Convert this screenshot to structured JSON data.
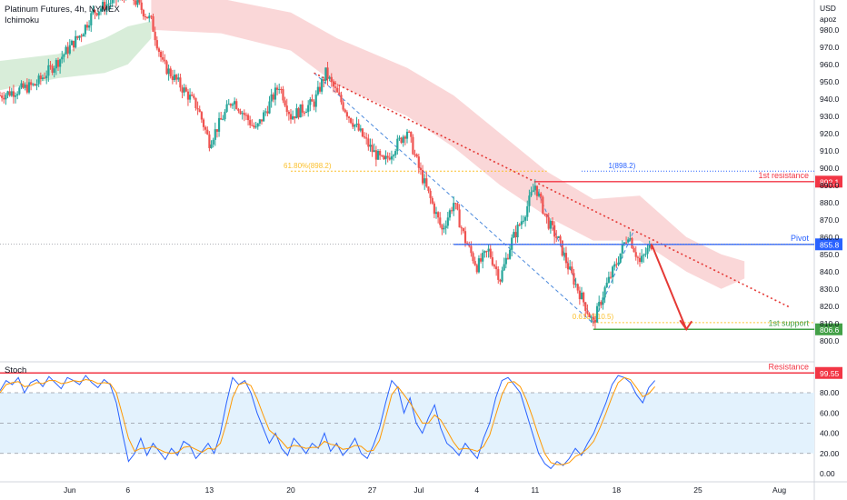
{
  "header": {
    "title": "Platinum Futures, 4h, NYMEX",
    "indicator": "Ichimoku",
    "currency": "USD",
    "scale_mode": "apoz"
  },
  "colors": {
    "up": "#26a69a",
    "down": "#ef5350",
    "resistance": "#f23645",
    "pivot": "#2962ff",
    "support": "#43a047",
    "fib": "#fbc02d",
    "cloud_bear": "#f8c9cb",
    "cloud_bull": "#c8e6c9",
    "stoch_k": "#2962ff",
    "stoch_d": "#ff9800",
    "stoch_band": "#e3f2fd"
  },
  "levels": {
    "first_resistance": {
      "label": "1st resistance",
      "value_label": "892.1",
      "value": 892.1
    },
    "pivot": {
      "label": "Pivot",
      "value_label": "855.8",
      "value": 855.8
    },
    "first_support": {
      "label": "1st support",
      "value_label": "806.6",
      "value": 806.6
    },
    "fib_618_left": {
      "label": "61.80%(898.2)",
      "value": 898.2
    },
    "fib_1_right": {
      "label": "1(898.2)",
      "value": 898.2
    },
    "fib_0618_bottom": {
      "label": "0.618(810.5)",
      "value": 810.5
    },
    "stoch_resistance": {
      "label": "Resistance",
      "value_label": "99.55",
      "value": 99.55
    }
  },
  "chart_data": [
    {
      "type": "candlestick",
      "title": "Platinum Futures, 4h, NYMEX",
      "ylim": [
        792,
        1000
      ],
      "y_ticks": [
        "800.0",
        "810.0",
        "820.0",
        "830.0",
        "840.0",
        "850.0",
        "860.0",
        "870.0",
        "880.0",
        "890.0",
        "900.0",
        "910.0",
        "920.0",
        "930.0",
        "940.0",
        "950.0",
        "960.0",
        "970.0",
        "980.0"
      ],
      "x_ticks": [
        "Jun",
        "6",
        "13",
        "20",
        "27",
        "Jul",
        "4",
        "11",
        "18",
        "25",
        "Aug"
      ],
      "x_tick_days": [
        1,
        6,
        13,
        20,
        27,
        31,
        36,
        41,
        48,
        55,
        62
      ],
      "x_range_days": [
        -5,
        65
      ],
      "price_path": [
        {
          "day": -5,
          "price": 942
        },
        {
          "day": -2,
          "price": 948
        },
        {
          "day": 0,
          "price": 962
        },
        {
          "day": 2,
          "price": 978
        },
        {
          "day": 3,
          "price": 990
        },
        {
          "day": 6,
          "price": 1002
        },
        {
          "day": 8,
          "price": 985
        },
        {
          "day": 9,
          "price": 960
        },
        {
          "day": 10,
          "price": 952
        },
        {
          "day": 12,
          "price": 935
        },
        {
          "day": 13,
          "price": 915
        },
        {
          "day": 15,
          "price": 940
        },
        {
          "day": 17,
          "price": 922
        },
        {
          "day": 19,
          "price": 948
        },
        {
          "day": 20,
          "price": 930
        },
        {
          "day": 22,
          "price": 938
        },
        {
          "day": 23,
          "price": 955
        },
        {
          "day": 25,
          "price": 930
        },
        {
          "day": 27,
          "price": 910
        },
        {
          "day": 28,
          "price": 903
        },
        {
          "day": 30,
          "price": 922
        },
        {
          "day": 31,
          "price": 900
        },
        {
          "day": 32,
          "price": 882
        },
        {
          "day": 33,
          "price": 864
        },
        {
          "day": 34,
          "price": 880
        },
        {
          "day": 35,
          "price": 858
        },
        {
          "day": 36,
          "price": 843
        },
        {
          "day": 37,
          "price": 852
        },
        {
          "day": 38,
          "price": 836
        },
        {
          "day": 39,
          "price": 858
        },
        {
          "day": 40,
          "price": 872
        },
        {
          "day": 41,
          "price": 890
        },
        {
          "day": 42,
          "price": 870
        },
        {
          "day": 43,
          "price": 858
        },
        {
          "day": 44,
          "price": 840
        },
        {
          "day": 45,
          "price": 825
        },
        {
          "day": 46,
          "price": 810
        },
        {
          "day": 47,
          "price": 830
        },
        {
          "day": 48,
          "price": 845
        },
        {
          "day": 49,
          "price": 862
        },
        {
          "day": 50,
          "price": 845
        },
        {
          "day": 51,
          "price": 856
        }
      ],
      "projection": {
        "from": {
          "day": 51,
          "price": 856
        },
        "to": {
          "day": 54,
          "price": 806.6
        }
      },
      "trendline": {
        "from": {
          "day": 22,
          "price": 955
        },
        "to": {
          "day": 63,
          "price": 819
        }
      },
      "cloud_bear": [
        {
          "day": 8,
          "top": 1002,
          "bottom": 980
        },
        {
          "day": 14,
          "top": 998,
          "bottom": 978
        },
        {
          "day": 20,
          "top": 990,
          "bottom": 968
        },
        {
          "day": 24,
          "top": 975,
          "bottom": 948
        },
        {
          "day": 30,
          "top": 958,
          "bottom": 930
        },
        {
          "day": 34,
          "top": 942,
          "bottom": 912
        },
        {
          "day": 38,
          "top": 920,
          "bottom": 890
        },
        {
          "day": 42,
          "top": 898,
          "bottom": 872
        },
        {
          "day": 46,
          "top": 882,
          "bottom": 858
        },
        {
          "day": 50,
          "top": 884,
          "bottom": 858
        },
        {
          "day": 54,
          "top": 860,
          "bottom": 840
        },
        {
          "day": 57,
          "top": 850,
          "bottom": 830
        },
        {
          "day": 59,
          "top": 846,
          "bottom": 836
        }
      ],
      "cloud_bull": [
        {
          "day": -5,
          "top": 962,
          "bottom": 945
        },
        {
          "day": 0,
          "top": 966,
          "bottom": 952
        },
        {
          "day": 4,
          "top": 975,
          "bottom": 955
        },
        {
          "day": 6,
          "top": 982,
          "bottom": 960
        },
        {
          "day": 8,
          "top": 985,
          "bottom": 975
        }
      ]
    },
    {
      "type": "line",
      "title": "Stoch",
      "ylim": [
        -8,
        108
      ],
      "y_ticks": [
        "0.00",
        "20.00",
        "40.00",
        "60.00",
        "80.00"
      ],
      "band": [
        20,
        80
      ],
      "midline": 50,
      "series": [
        {
          "name": "%K",
          "values": [
            82,
            92,
            88,
            95,
            80,
            90,
            93,
            86,
            96,
            90,
            84,
            95,
            92,
            88,
            97,
            90,
            85,
            93,
            88,
            70,
            40,
            12,
            20,
            35,
            18,
            30,
            22,
            14,
            25,
            18,
            32,
            28,
            15,
            22,
            30,
            20,
            40,
            70,
            95,
            88,
            92,
            80,
            60,
            45,
            30,
            40,
            25,
            18,
            35,
            28,
            20,
            30,
            25,
            40,
            22,
            30,
            18,
            25,
            35,
            20,
            15,
            28,
            45,
            70,
            92,
            85,
            60,
            75,
            50,
            40,
            55,
            68,
            45,
            30,
            25,
            18,
            30,
            22,
            15,
            35,
            50,
            75,
            92,
            95,
            88,
            80,
            60,
            40,
            20,
            10,
            5,
            12,
            8,
            15,
            25,
            18,
            30,
            40,
            55,
            70,
            88,
            97,
            95,
            90,
            78,
            70,
            85,
            92
          ]
        },
        {
          "name": "%D",
          "values": [
            80,
            88,
            90,
            91,
            86,
            87,
            90,
            89,
            92,
            92,
            89,
            90,
            92,
            91,
            93,
            92,
            89,
            90,
            89,
            80,
            58,
            35,
            22,
            25,
            25,
            27,
            24,
            21,
            20,
            21,
            26,
            27,
            24,
            21,
            25,
            24,
            30,
            50,
            75,
            88,
            90,
            87,
            74,
            58,
            43,
            38,
            32,
            25,
            28,
            27,
            25,
            26,
            26,
            32,
            29,
            28,
            24,
            25,
            28,
            27,
            22,
            23,
            33,
            55,
            78,
            86,
            78,
            70,
            60,
            50,
            50,
            58,
            53,
            43,
            32,
            24,
            25,
            24,
            22,
            27,
            38,
            58,
            78,
            90,
            91,
            86,
            73,
            56,
            37,
            20,
            11,
            9,
            9,
            11,
            17,
            20,
            25,
            32,
            45,
            60,
            76,
            90,
            95,
            93,
            85,
            76,
            79,
            86
          ]
        }
      ]
    }
  ]
}
